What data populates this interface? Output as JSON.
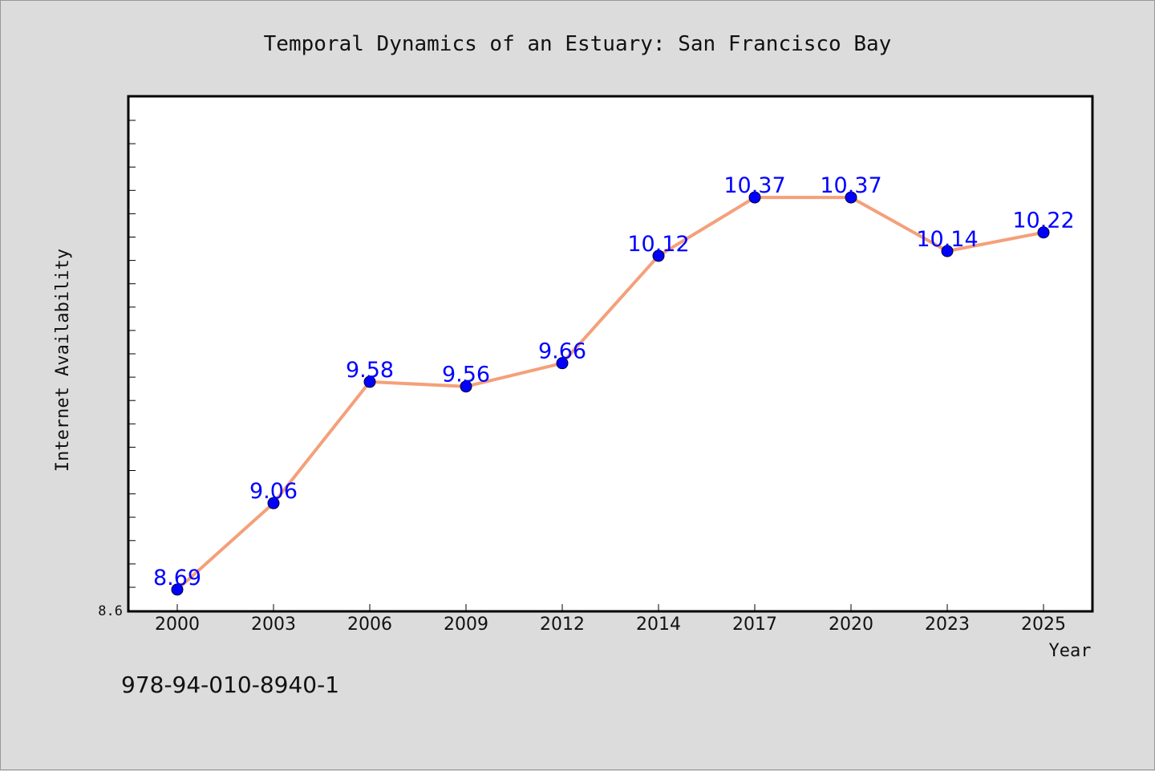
{
  "chart_data": {
    "type": "line",
    "title": "Temporal Dynamics of an Estuary: San Francisco Bay",
    "xlabel": "Year",
    "ylabel": "Internet Availability",
    "categories": [
      "2000",
      "2003",
      "2006",
      "2009",
      "2012",
      "2014",
      "2017",
      "2020",
      "2023",
      "2025"
    ],
    "series": [
      {
        "values": [
          8.69,
          9.06,
          9.58,
          9.56,
          9.66,
          10.12,
          10.37,
          10.37,
          10.14,
          10.22
        ],
        "labels": [
          "8.69",
          "9.06",
          "9.58",
          "9.56",
          "9.66",
          "10.12",
          "10.37",
          "10.37",
          "10.14",
          "10.22"
        ]
      }
    ],
    "yticks": [
      "8.6"
    ],
    "ylim": [
      8.6,
      10.8
    ],
    "grid": false,
    "legend": "none",
    "colors": {
      "line": "#f4a07a",
      "marker": "#0000ff",
      "label": "#0000ff",
      "background": "#dcdcdc",
      "plot_background": "#ffffff"
    }
  },
  "footer": {
    "isbn": "978-94-010-8940-1"
  }
}
